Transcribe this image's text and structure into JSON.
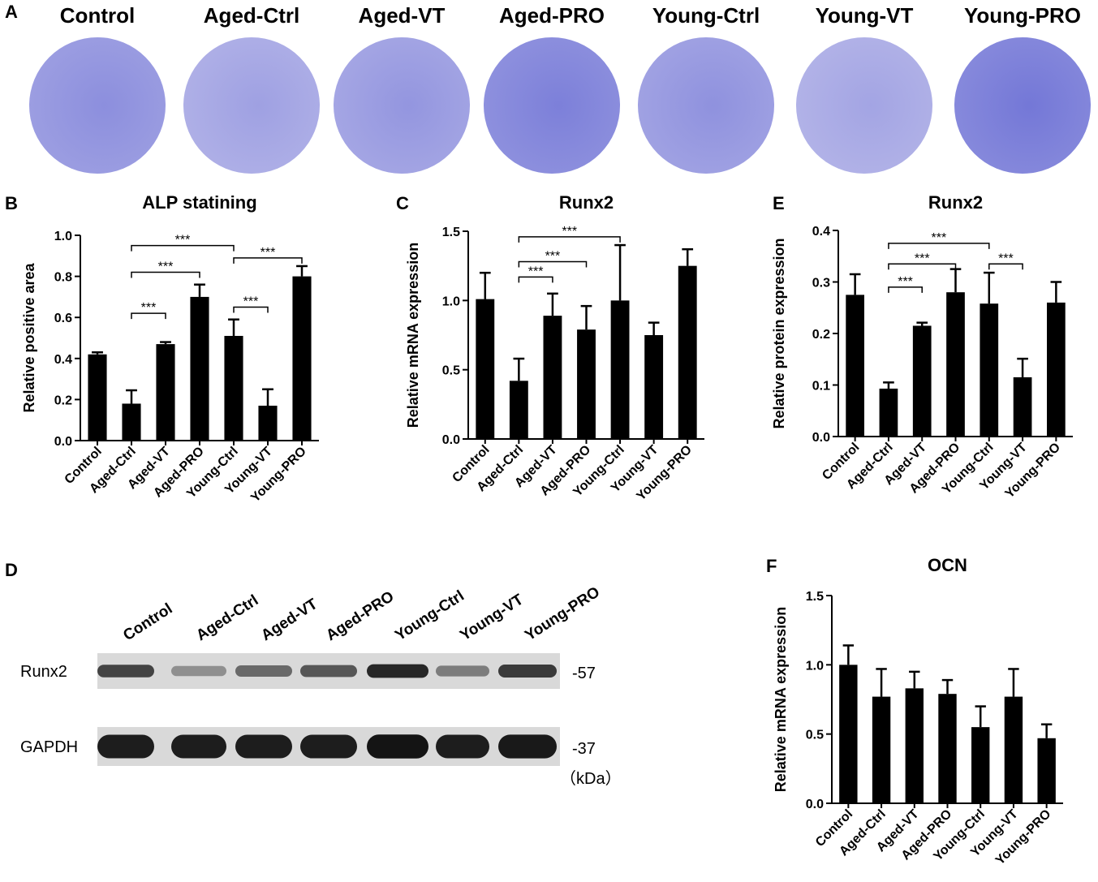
{
  "panels": {
    "A": {
      "letter": "A",
      "wells": [
        {
          "label": "Control",
          "intensity": 0.55
        },
        {
          "label": "Aged-Ctrl",
          "intensity": 0.3
        },
        {
          "label": "Aged-VT",
          "intensity": 0.45
        },
        {
          "label": "Aged-PRO",
          "intensity": 0.75
        },
        {
          "label": "Young-Ctrl",
          "intensity": 0.5
        },
        {
          "label": "Young-VT",
          "intensity": 0.25
        },
        {
          "label": "Young-PRO",
          "intensity": 0.85
        }
      ],
      "stain_color": "#5a5fd0"
    },
    "D": {
      "letter": "D",
      "lanes": [
        "Control",
        "Aged-Ctrl",
        "Aged-VT",
        "Aged-PRO",
        "Young-Ctrl",
        "Young-VT",
        "Young-PRO"
      ],
      "rows": [
        {
          "label": "Runx2",
          "marker": "-57",
          "intensities": [
            0.7,
            0.3,
            0.5,
            0.6,
            0.85,
            0.4,
            0.75
          ]
        },
        {
          "label": "GAPDH",
          "marker": "-37",
          "intensities": [
            0.9,
            0.9,
            0.9,
            0.9,
            0.95,
            0.9,
            0.92
          ]
        }
      ],
      "unit_label": "（kDa）"
    }
  },
  "chart_data": [
    {
      "panel": "B",
      "type": "bar",
      "title": "ALP statining",
      "xlabel": "",
      "ylabel": "Relative positive area",
      "categories": [
        "Control",
        "Aged-Ctrl",
        "Aged-VT",
        "Aged-PRO",
        "Young-Ctrl",
        "Young-VT",
        "Young-PRO"
      ],
      "values": [
        0.42,
        0.18,
        0.47,
        0.7,
        0.51,
        0.17,
        0.8
      ],
      "errors": [
        0.01,
        0.065,
        0.01,
        0.06,
        0.08,
        0.08,
        0.05
      ],
      "ylim": [
        0,
        1.0
      ],
      "yticks": [
        "0.0",
        "0.2",
        "0.4",
        "0.6",
        "0.8",
        "1.0"
      ],
      "significance": [
        {
          "from": 1,
          "to": 2,
          "y": 0.62,
          "label": "***"
        },
        {
          "from": 1,
          "to": 3,
          "y": 0.82,
          "label": "***"
        },
        {
          "from": 1,
          "to": 4,
          "y": 0.95,
          "label": "***"
        },
        {
          "from": 4,
          "to": 5,
          "y": 0.65,
          "label": "***"
        },
        {
          "from": 4,
          "to": 6,
          "y": 0.89,
          "label": "***"
        }
      ]
    },
    {
      "panel": "C",
      "type": "bar",
      "title": "Runx2",
      "xlabel": "",
      "ylabel": "Relative mRNA expression",
      "categories": [
        "Control",
        "Aged-Ctrl",
        "Aged-VT",
        "Aged-PRO",
        "Young-Ctrl",
        "Young-VT",
        "Young-PRO"
      ],
      "values": [
        1.01,
        0.42,
        0.89,
        0.79,
        1.0,
        0.75,
        1.25
      ],
      "errors": [
        0.19,
        0.16,
        0.16,
        0.17,
        0.4,
        0.09,
        0.12
      ],
      "ylim": [
        0,
        1.5
      ],
      "yticks": [
        "0.0",
        "0.5",
        "1.0",
        "1.5"
      ],
      "significance": [
        {
          "from": 1,
          "to": 2,
          "y": 1.17,
          "label": "***"
        },
        {
          "from": 1,
          "to": 3,
          "y": 1.28,
          "label": "***"
        },
        {
          "from": 1,
          "to": 4,
          "y": 1.46,
          "label": "***"
        }
      ]
    },
    {
      "panel": "E",
      "type": "bar",
      "title": "Runx2",
      "xlabel": "",
      "ylabel": "Relative protein expression",
      "categories": [
        "Control",
        "Aged-Ctrl",
        "Aged-VT",
        "Aged-PRO",
        "Young-Ctrl",
        "Young-VT",
        "Young-PRO"
      ],
      "values": [
        0.275,
        0.093,
        0.215,
        0.28,
        0.258,
        0.115,
        0.26
      ],
      "errors": [
        0.04,
        0.012,
        0.006,
        0.045,
        0.06,
        0.036,
        0.04
      ],
      "ylim": [
        0,
        0.4
      ],
      "yticks": [
        "0.0",
        "0.1",
        "0.2",
        "0.3",
        "0.4"
      ],
      "significance": [
        {
          "from": 1,
          "to": 2,
          "y": 0.29,
          "label": "***"
        },
        {
          "from": 1,
          "to": 3,
          "y": 0.335,
          "label": "***"
        },
        {
          "from": 1,
          "to": 4,
          "y": 0.375,
          "label": "***"
        },
        {
          "from": 4,
          "to": 5,
          "y": 0.335,
          "label": "***"
        }
      ]
    },
    {
      "panel": "F",
      "type": "bar",
      "title": "OCN",
      "xlabel": "",
      "ylabel": "Relative mRNA expression",
      "categories": [
        "Control",
        "Aged-Ctrl",
        "Aged-VT",
        "Aged-PRO",
        "Young-Ctrl",
        "Young-VT",
        "Young-PRO"
      ],
      "values": [
        1.0,
        0.77,
        0.83,
        0.79,
        0.55,
        0.77,
        0.47
      ],
      "errors": [
        0.14,
        0.2,
        0.12,
        0.1,
        0.15,
        0.2,
        0.1
      ],
      "ylim": [
        0,
        1.5
      ],
      "yticks": [
        "0.0",
        "0.5",
        "1.0",
        "1.5"
      ],
      "significance": []
    }
  ]
}
